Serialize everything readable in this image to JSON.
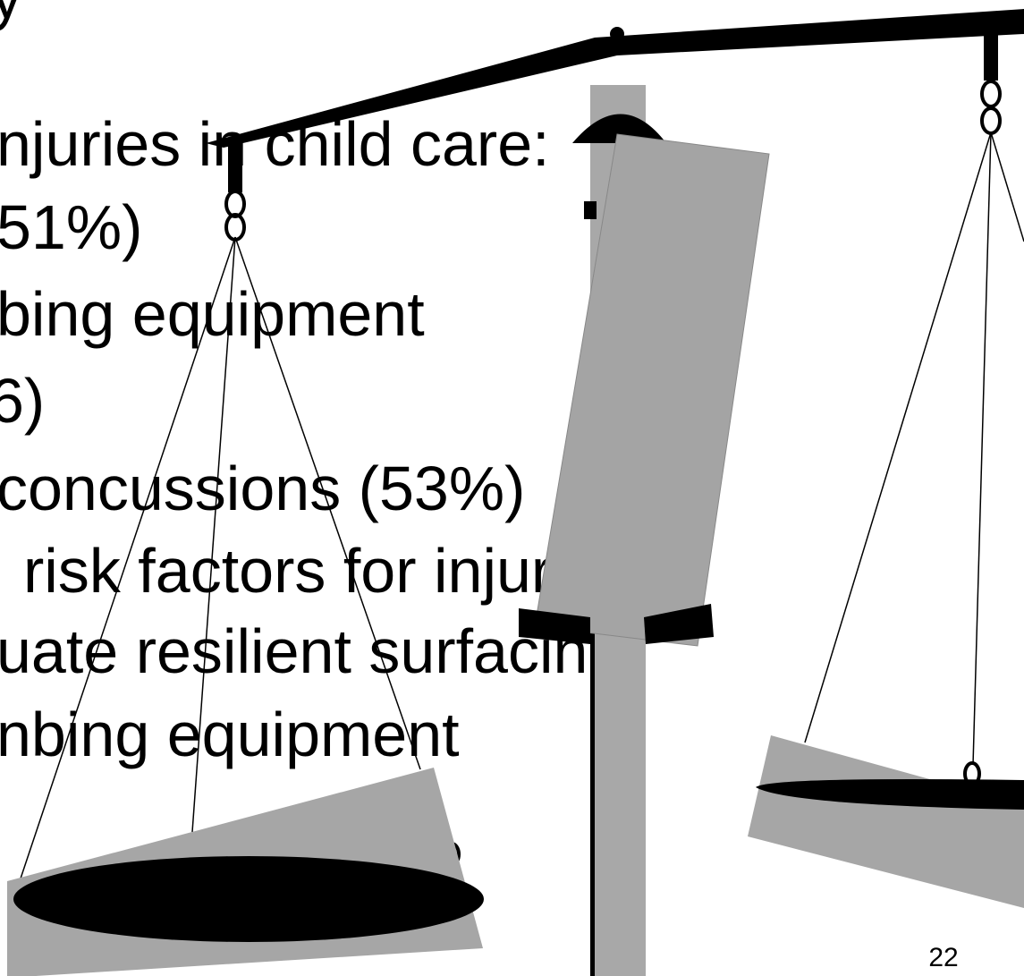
{
  "slide": {
    "lines": [
      "y",
      "njuries in child care:",
      "51%)",
      "bing equipment",
      "6)",
      "concussions (53%)",
      "risk factors for injuries =",
      "uate resilient surfacing",
      "nbing equipment"
    ],
    "page_number": "22"
  }
}
